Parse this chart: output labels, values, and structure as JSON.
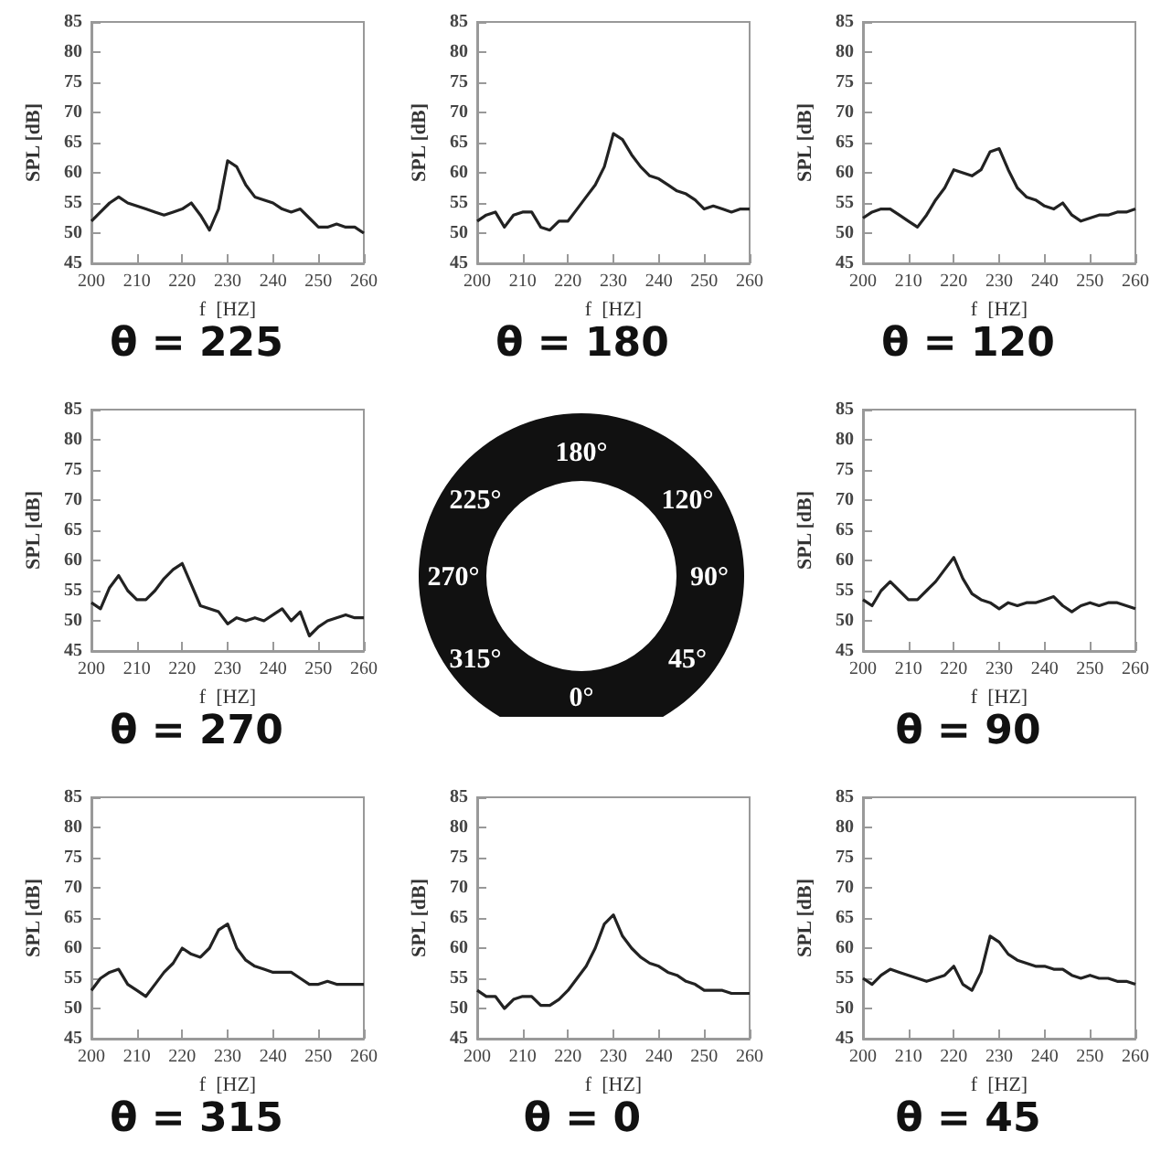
{
  "chart_data": [
    {
      "type": "line",
      "title": "θ = 225",
      "xlabel": "f  [HZ]",
      "ylabel": "SPL [dB]",
      "xlim": [
        200,
        260
      ],
      "xticks": [
        200,
        210,
        220,
        230,
        240,
        250,
        260
      ],
      "ylim": [
        45,
        85
      ],
      "yticks": [
        45,
        50,
        55,
        60,
        65,
        70,
        75,
        80,
        85
      ],
      "series": [
        {
          "color": "#222222",
          "x": [
            200,
            202,
            204,
            206,
            208,
            210,
            212,
            214,
            216,
            218,
            220,
            222,
            224,
            226,
            228,
            230,
            232,
            234,
            236,
            238,
            240,
            242,
            244,
            246,
            248,
            250,
            252,
            254,
            256,
            258,
            260
          ],
          "values": [
            52,
            53.5,
            55,
            56,
            55,
            54.5,
            54,
            53.5,
            53,
            53.5,
            54,
            55,
            53,
            50.5,
            54,
            62,
            61,
            58,
            56,
            55.5,
            55,
            54,
            53.5,
            54,
            52.5,
            51,
            51,
            51.5,
            51,
            51,
            50
          ]
        }
      ]
    },
    {
      "type": "line",
      "title": "θ = 180",
      "xlabel": "f  [HZ]",
      "ylabel": "SPL [dB]",
      "xlim": [
        200,
        260
      ],
      "xticks": [
        200,
        210,
        220,
        230,
        240,
        250,
        260
      ],
      "ylim": [
        45,
        85
      ],
      "yticks": [
        45,
        50,
        55,
        60,
        65,
        70,
        75,
        80,
        85
      ],
      "series": [
        {
          "color": "#222222",
          "x": [
            200,
            202,
            204,
            206,
            208,
            210,
            212,
            214,
            216,
            218,
            220,
            222,
            224,
            226,
            228,
            230,
            232,
            234,
            236,
            238,
            240,
            242,
            244,
            246,
            248,
            250,
            252,
            254,
            256,
            258,
            260
          ],
          "values": [
            52,
            53,
            53.5,
            51,
            53,
            53.5,
            53.5,
            51,
            50.5,
            52,
            52,
            54,
            56,
            58,
            61,
            66.5,
            65.5,
            63,
            61,
            59.5,
            59,
            58,
            57,
            56.5,
            55.5,
            54,
            54.5,
            54,
            53.5,
            54,
            54
          ]
        }
      ]
    },
    {
      "type": "line",
      "title": "θ = 120",
      "xlabel": "f  [HZ]",
      "ylabel": "SPL [dB]",
      "xlim": [
        200,
        260
      ],
      "xticks": [
        200,
        210,
        220,
        230,
        240,
        250,
        260
      ],
      "ylim": [
        45,
        85
      ],
      "yticks": [
        45,
        50,
        55,
        60,
        65,
        70,
        75,
        80,
        85
      ],
      "series": [
        {
          "color": "#222222",
          "x": [
            200,
            202,
            204,
            206,
            208,
            210,
            212,
            214,
            216,
            218,
            220,
            222,
            224,
            226,
            228,
            230,
            232,
            234,
            236,
            238,
            240,
            242,
            244,
            246,
            248,
            250,
            252,
            254,
            256,
            258,
            260
          ],
          "values": [
            52.5,
            53.5,
            54,
            54,
            53,
            52,
            51,
            53,
            55.5,
            57.5,
            60.5,
            60,
            59.5,
            60.5,
            63.5,
            64,
            60.5,
            57.5,
            56,
            55.5,
            54.5,
            54,
            55,
            53,
            52,
            52.5,
            53,
            53,
            53.5,
            53.5,
            54
          ]
        }
      ]
    },
    {
      "type": "line",
      "title": "θ = 270",
      "xlabel": "f  [HZ]",
      "ylabel": "SPL [dB]",
      "xlim": [
        200,
        260
      ],
      "xticks": [
        200,
        210,
        220,
        230,
        240,
        250,
        260
      ],
      "ylim": [
        45,
        85
      ],
      "yticks": [
        45,
        50,
        55,
        60,
        65,
        70,
        75,
        80,
        85
      ],
      "series": [
        {
          "color": "#222222",
          "x": [
            200,
            202,
            204,
            206,
            208,
            210,
            212,
            214,
            216,
            218,
            220,
            222,
            224,
            226,
            228,
            230,
            232,
            234,
            236,
            238,
            240,
            242,
            244,
            246,
            248,
            250,
            252,
            254,
            256,
            258,
            260
          ],
          "values": [
            53,
            52,
            55.5,
            57.5,
            55,
            53.5,
            53.5,
            55,
            57,
            58.5,
            59.5,
            56,
            52.5,
            52,
            51.5,
            49.5,
            50.5,
            50,
            50.5,
            50,
            51,
            52,
            50,
            51.5,
            47.5,
            49,
            50,
            50.5,
            51,
            50.5,
            50.5
          ]
        }
      ]
    },
    {
      "type": "other",
      "annotations": [
        "180°",
        "225°",
        "120°",
        "270°",
        "90°",
        "315°",
        "45°",
        "0°"
      ]
    },
    {
      "type": "line",
      "title": "θ = 90",
      "xlabel": "f  [HZ]",
      "ylabel": "SPL [dB]",
      "xlim": [
        200,
        260
      ],
      "xticks": [
        200,
        210,
        220,
        230,
        240,
        250,
        260
      ],
      "ylim": [
        45,
        85
      ],
      "yticks": [
        45,
        50,
        55,
        60,
        65,
        70,
        75,
        80,
        85
      ],
      "series": [
        {
          "color": "#222222",
          "x": [
            200,
            202,
            204,
            206,
            208,
            210,
            212,
            214,
            216,
            218,
            220,
            222,
            224,
            226,
            228,
            230,
            232,
            234,
            236,
            238,
            240,
            242,
            244,
            246,
            248,
            250,
            252,
            254,
            256,
            258,
            260
          ],
          "values": [
            53.5,
            52.5,
            55,
            56.5,
            55,
            53.5,
            53.5,
            55,
            56.5,
            58.5,
            60.5,
            57,
            54.5,
            53.5,
            53,
            52,
            53,
            52.5,
            53,
            53,
            53.5,
            54,
            52.5,
            51.5,
            52.5,
            53,
            52.5,
            53,
            53,
            52.5,
            52
          ]
        }
      ]
    },
    {
      "type": "line",
      "title": "θ = 315",
      "xlabel": "f  [HZ]",
      "ylabel": "SPL [dB]",
      "xlim": [
        200,
        260
      ],
      "xticks": [
        200,
        210,
        220,
        230,
        240,
        250,
        260
      ],
      "ylim": [
        45,
        85
      ],
      "yticks": [
        45,
        50,
        55,
        60,
        65,
        70,
        75,
        80,
        85
      ],
      "series": [
        {
          "color": "#222222",
          "x": [
            200,
            202,
            204,
            206,
            208,
            210,
            212,
            214,
            216,
            218,
            220,
            222,
            224,
            226,
            228,
            230,
            232,
            234,
            236,
            238,
            240,
            242,
            244,
            246,
            248,
            250,
            252,
            254,
            256,
            258,
            260
          ],
          "values": [
            53,
            55,
            56,
            56.5,
            54,
            53,
            52,
            54,
            56,
            57.5,
            60,
            59,
            58.5,
            60,
            63,
            64,
            60,
            58,
            57,
            56.5,
            56,
            56,
            56,
            55,
            54,
            54,
            54.5,
            54,
            54,
            54,
            54
          ]
        }
      ]
    },
    {
      "type": "line",
      "title": "θ = 0",
      "xlabel": "f  [HZ]",
      "ylabel": "SPL [dB]",
      "xlim": [
        200,
        260
      ],
      "xticks": [
        200,
        210,
        220,
        230,
        240,
        250,
        260
      ],
      "ylim": [
        45,
        85
      ],
      "yticks": [
        45,
        50,
        55,
        60,
        65,
        70,
        75,
        80,
        85
      ],
      "series": [
        {
          "color": "#222222",
          "x": [
            200,
            202,
            204,
            206,
            208,
            210,
            212,
            214,
            216,
            218,
            220,
            222,
            224,
            226,
            228,
            230,
            232,
            234,
            236,
            238,
            240,
            242,
            244,
            246,
            248,
            250,
            252,
            254,
            256,
            258,
            260
          ],
          "values": [
            53,
            52,
            52,
            50,
            51.5,
            52,
            52,
            50.5,
            50.5,
            51.5,
            53,
            55,
            57,
            60,
            64,
            65.5,
            62,
            60,
            58.5,
            57.5,
            57,
            56,
            55.5,
            54.5,
            54,
            53,
            53,
            53,
            52.5,
            52.5,
            52.5
          ]
        }
      ]
    },
    {
      "type": "line",
      "title": "θ = 45",
      "xlabel": "f  [HZ]",
      "ylabel": "SPL [dB]",
      "xlim": [
        200,
        260
      ],
      "xticks": [
        200,
        210,
        220,
        230,
        240,
        250,
        260
      ],
      "ylim": [
        45,
        85
      ],
      "yticks": [
        45,
        50,
        55,
        60,
        65,
        70,
        75,
        80,
        85
      ],
      "series": [
        {
          "color": "#222222",
          "x": [
            200,
            202,
            204,
            206,
            208,
            210,
            212,
            214,
            216,
            218,
            220,
            222,
            224,
            226,
            228,
            230,
            232,
            234,
            236,
            238,
            240,
            242,
            244,
            246,
            248,
            250,
            252,
            254,
            256,
            258,
            260
          ],
          "values": [
            55,
            54,
            55.5,
            56.5,
            56,
            55.5,
            55,
            54.5,
            55,
            55.5,
            57,
            54,
            53,
            56,
            62,
            61,
            59,
            58,
            57.5,
            57,
            57,
            56.5,
            56.5,
            55.5,
            55,
            55.5,
            55,
            55,
            54.5,
            54.5,
            54
          ]
        }
      ]
    }
  ]
}
